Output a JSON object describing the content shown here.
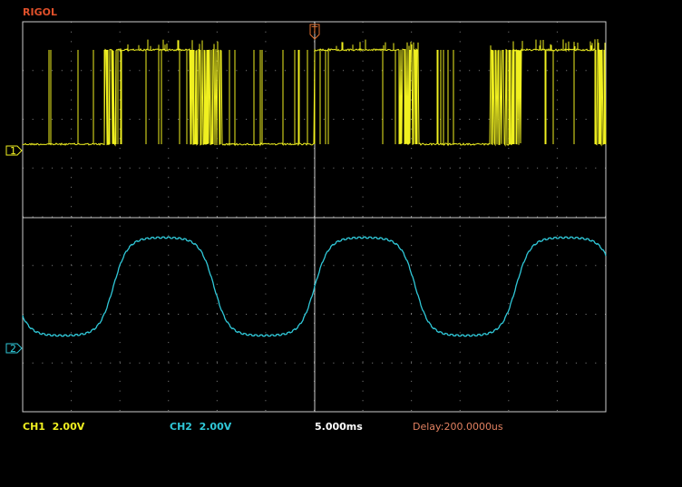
{
  "header": {
    "brand": "RIGOL"
  },
  "markers": {
    "ch1": "1",
    "ch2": "2",
    "trigger": "T"
  },
  "status": {
    "ch1": "CH1  2.00V",
    "ch2": "CH2  2.00V",
    "timebase": "5.000ms",
    "delay": "Delay:200.0000us"
  }
}
